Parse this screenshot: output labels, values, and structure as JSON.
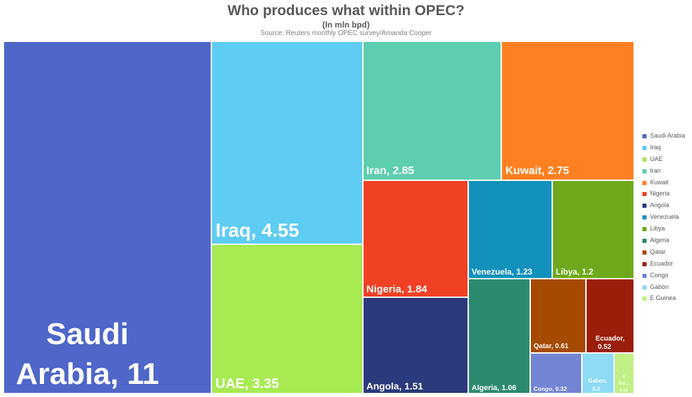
{
  "chart_data": {
    "type": "treemap",
    "title": "Who produces what within OPEC?",
    "subtitle": "(In mln bpd)",
    "source": "Source: Reuters monthly OPEC survey/Amanda Cooper",
    "legend_position": "right",
    "items": [
      {
        "name": "Saudi Arabia",
        "value": 11,
        "label": "Saudi Arabia, 11",
        "color": "#4E67C8"
      },
      {
        "name": "Iraq",
        "value": 4.55,
        "label": "Iraq, 4.55",
        "color": "#5ECCF3"
      },
      {
        "name": "UAE",
        "value": 3.35,
        "label": "UAE, 3.35",
        "color": "#A7EA52"
      },
      {
        "name": "Iran",
        "value": 2.85,
        "label": "Iran, 2.85",
        "color": "#5DCEAF"
      },
      {
        "name": "Kuwait",
        "value": 2.75,
        "label": "Kuwait, 2.75",
        "color": "#FF8021"
      },
      {
        "name": "Nigeria",
        "value": 1.84,
        "label": "Nigeria, 1.84",
        "color": "#F14124"
      },
      {
        "name": "Angola",
        "value": 1.51,
        "label": "Angola, 1.51",
        "color": "#2B3A7D"
      },
      {
        "name": "Venezuela",
        "value": 1.23,
        "label": "Venezuela, 1.23",
        "color": "#1291BD"
      },
      {
        "name": "Libya",
        "value": 1.2,
        "label": "Libya, 1.2",
        "color": "#6DA91B"
      },
      {
        "name": "Algeria",
        "value": 1.06,
        "label": "Algeria, 1.06",
        "color": "#2B8A6F"
      },
      {
        "name": "Qatar",
        "value": 0.61,
        "label": "Qatar, 0.61",
        "color": "#A64A00"
      },
      {
        "name": "Ecuador",
        "value": 0.52,
        "label": "Ecuador, 0.52",
        "color": "#9B1E0B"
      },
      {
        "name": "Congo",
        "value": 0.32,
        "label": "Congo, 0.32",
        "color": "#7484D4"
      },
      {
        "name": "Gabon",
        "value": 0.2,
        "label": "Gabon, 0.2",
        "color": "#8DDBF5"
      },
      {
        "name": "E Guinea",
        "value": 0.12,
        "label": "E Gui... 0.12",
        "color": "#C0F086"
      }
    ]
  }
}
